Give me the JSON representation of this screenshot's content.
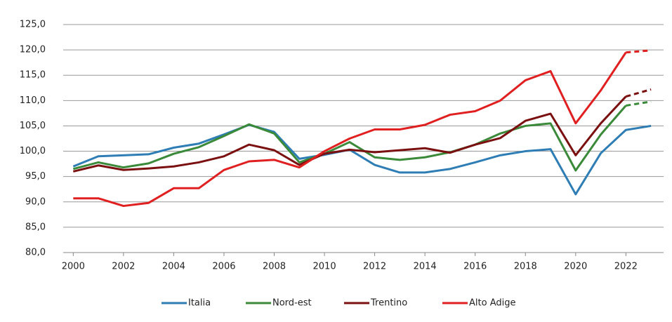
{
  "chart_data": {
    "type": "line",
    "x": [
      2000,
      2001,
      2002,
      2003,
      2004,
      2005,
      2006,
      2007,
      2008,
      2009,
      2010,
      2011,
      2012,
      2013,
      2014,
      2015,
      2016,
      2017,
      2018,
      2019,
      2020,
      2021,
      2022,
      2023
    ],
    "xlim": [
      1999.6,
      2023.5
    ],
    "xticks": [
      2000,
      2002,
      2004,
      2006,
      2008,
      2010,
      2012,
      2014,
      2016,
      2018,
      2020,
      2022
    ],
    "ylim": [
      80,
      125
    ],
    "yticks": [
      {
        "value": 80,
        "label": "80,0"
      },
      {
        "value": 85,
        "label": "85,0"
      },
      {
        "value": 90,
        "label": "90,0"
      },
      {
        "value": 95,
        "label": "95,0"
      },
      {
        "value": 100,
        "label": "100,0"
      },
      {
        "value": 105,
        "label": "105,0"
      },
      {
        "value": 110,
        "label": "110,0"
      },
      {
        "value": 115,
        "label": "115,0"
      },
      {
        "value": 120,
        "label": "120,0"
      },
      {
        "value": 125,
        "label": "125,0"
      }
    ],
    "grid": true,
    "legend": "bottom",
    "series": [
      {
        "name": "Italia",
        "color": "#2e7db5",
        "values": [
          97,
          99,
          99.2,
          99.4,
          100.7,
          101.5,
          103.3,
          105.2,
          103.8,
          98.5,
          99.3,
          100.3,
          97.3,
          95.8,
          95.8,
          96.5,
          97.8,
          99.2,
          100,
          100.4,
          91.5,
          99.6,
          104.2,
          105
        ]
      },
      {
        "name": "Nord-est",
        "color": "#3a8a3a",
        "dash_from": 2022,
        "values": [
          96.5,
          97.8,
          96.8,
          97.6,
          99.5,
          100.8,
          103,
          105.3,
          103.5,
          97.8,
          99.5,
          101.8,
          98.8,
          98.3,
          98.8,
          99.8,
          101.3,
          103.5,
          105,
          105.5,
          96.2,
          103.3,
          109,
          109.8
        ]
      },
      {
        "name": "Trentino",
        "color": "#7b1010",
        "dash_from": 2022,
        "values": [
          96,
          97.2,
          96.3,
          96.6,
          97,
          97.8,
          99,
          101.3,
          100.2,
          97.3,
          99.5,
          100.3,
          99.8,
          100.2,
          100.6,
          99.7,
          101.3,
          102.6,
          106,
          107.4,
          99.2,
          105.5,
          110.8,
          112.2
        ]
      },
      {
        "name": "Alto Adige",
        "color": "#e02020",
        "dash_from": 2022,
        "values": [
          90.7,
          90.7,
          89.2,
          89.8,
          92.7,
          92.7,
          96.3,
          98,
          98.3,
          96.8,
          100,
          102.5,
          104.3,
          104.3,
          105.2,
          107.2,
          107.9,
          110,
          114,
          115.8,
          105.5,
          112,
          119.5,
          119.9
        ]
      }
    ]
  }
}
